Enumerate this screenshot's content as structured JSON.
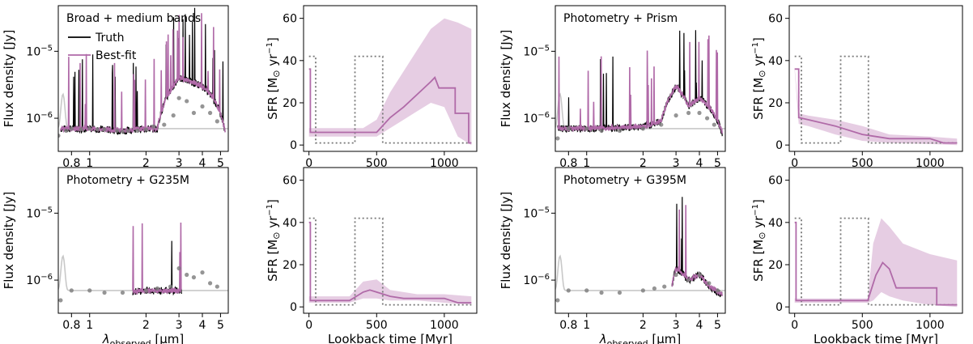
{
  "figure": {
    "description_label": "SED fits and star-formation histories for four data configurations"
  },
  "colors": {
    "truth": "#000000",
    "bestfit": "#b06aa8",
    "bestfit_band": "#e6cde3",
    "photometry_points": "#7a7a7a",
    "unfit_spectrum": "#c8c8c8",
    "truth_sfh": "#777777"
  },
  "legend": {
    "truth": "Truth",
    "bestfit": "Best-fit"
  },
  "sed_axes": {
    "ylabel": "Flux density [Jy]",
    "xlabel": "λ_observed [μm]",
    "xlabel_main": "λ",
    "xlabel_sub": "observed",
    "xlabel_unit": " [μm]",
    "xlim": [
      0.68,
      5.5
    ],
    "ylim": [
      3.2e-07,
      4.8e-05
    ],
    "xticks": [
      0.8,
      1,
      2,
      3,
      4,
      5
    ],
    "xticklabels": [
      "0.8",
      "1",
      "2",
      "3",
      "4",
      "5"
    ],
    "yticks": [
      1e-06,
      1e-05
    ],
    "yticklabels": [
      [
        "10",
        "−6"
      ],
      [
        "10",
        "−5"
      ]
    ]
  },
  "sfr_axes": {
    "ylabel": "SFR [M☉ yr⁻¹]",
    "ylabel_main": "SFR [M",
    "ylabel_sun": "⊙",
    "ylabel_yr": " yr",
    "ylabel_exp": "−1",
    "ylabel_close": "]",
    "xlabel": "Lookback time [Myr]",
    "xlim": [
      -40,
      1240
    ],
    "ylim": [
      -3,
      66
    ],
    "xticks": [
      0,
      500,
      1000
    ],
    "yticks": [
      0,
      20,
      40,
      60
    ],
    "truth_sfh": [
      [
        0,
        42
      ],
      [
        50,
        42
      ],
      [
        50,
        1
      ],
      [
        340,
        1
      ],
      [
        340,
        42
      ],
      [
        545,
        42
      ],
      [
        545,
        1
      ],
      [
        1200,
        1
      ]
    ]
  },
  "chart_data": [
    {
      "type": "line",
      "panel": "sed",
      "title": "Broad + medium bands",
      "legend": true,
      "series": [
        {
          "name": "Truth",
          "x": [
            0.7,
            0.8,
            1.0,
            1.5,
            2.0,
            2.3,
            3.0,
            4.0,
            5.3
          ],
          "y": [
            7e-07,
            7e-07,
            7e-07,
            6.5e-07,
            7e-07,
            7e-07,
            4e-06,
            3e-06,
            6e-07
          ]
        },
        {
          "name": "Best-fit",
          "x": [
            0.7,
            0.8,
            1.0,
            1.5,
            2.0,
            2.3,
            3.0,
            4.0,
            5.3
          ],
          "y": [
            7e-07,
            7e-07,
            7e-07,
            6.5e-07,
            7e-07,
            7e-07,
            4e-06,
            3e-06,
            6e-07
          ]
        },
        {
          "name": "Photometry",
          "x": [
            0.68,
            0.75,
            0.8,
            0.9,
            1.0,
            1.1,
            1.2,
            1.4,
            1.5,
            1.6,
            1.8,
            2.0,
            2.2,
            2.5,
            2.8,
            3.0,
            3.3,
            3.6,
            4.0,
            4.4,
            4.8
          ],
          "y": [
            5.5e-07,
            6.5e-07,
            7e-07,
            6.8e-07,
            7e-07,
            6.8e-07,
            6.8e-07,
            6.5e-07,
            6.3e-07,
            6.5e-07,
            6.5e-07,
            6.8e-07,
            7.5e-07,
            8e-07,
            1.1e-06,
            2e-06,
            1.8e-06,
            1.2e-06,
            1.5e-06,
            1.2e-06,
            9e-07
          ]
        }
      ]
    },
    {
      "type": "line",
      "panel": "sfh",
      "title": "",
      "series": [
        {
          "name": "Best-fit",
          "x": [
            0,
            10,
            10,
            500,
            600,
            700,
            800,
            900,
            930,
            960,
            1000,
            1050,
            1080,
            1080,
            1180,
            1180,
            1200
          ],
          "y": [
            36,
            36,
            6,
            6,
            13,
            18,
            24,
            30,
            32,
            27,
            27,
            27,
            27,
            15,
            15,
            1,
            1
          ]
        },
        {
          "name": "Best-fit band",
          "x": [
            0,
            400,
            500,
            600,
            700,
            800,
            900,
            1000,
            1100,
            1200
          ],
          "lower": [
            4,
            4,
            4,
            8,
            12,
            16,
            20,
            18,
            4,
            0
          ],
          "upper": [
            8,
            8,
            12,
            25,
            35,
            45,
            55,
            60,
            58,
            55
          ]
        }
      ]
    },
    {
      "type": "line",
      "panel": "sed",
      "title": "Photometry + Prism",
      "legend": false,
      "series": [
        {
          "name": "Truth",
          "x": [
            0.7,
            1.0,
            2.0,
            2.5,
            3.0,
            3.5,
            4.0,
            5.3
          ],
          "y": [
            7e-07,
            7e-07,
            7.5e-07,
            9e-07,
            3e-06,
            1.5e-06,
            2e-06,
            6e-07
          ]
        },
        {
          "name": "Best-fit",
          "x": [
            0.7,
            1.0,
            2.0,
            2.5,
            3.0,
            3.5,
            4.0,
            5.3
          ],
          "y": [
            7e-07,
            7e-07,
            7.5e-07,
            9e-07,
            3e-06,
            1.5e-06,
            2e-06,
            6e-07
          ]
        },
        {
          "name": "Photometry",
          "x": [
            0.7,
            0.8,
            1.0,
            1.2,
            1.5,
            2.0,
            2.5,
            3.0,
            3.5,
            4.0,
            4.4,
            4.8
          ],
          "y": [
            5e-07,
            7e-07,
            7e-07,
            6.5e-07,
            6.5e-07,
            7e-07,
            8e-07,
            1.1e-06,
            1.2e-06,
            1.2e-06,
            1e-06,
            8e-07
          ]
        }
      ]
    },
    {
      "type": "line",
      "panel": "sfh",
      "title": "",
      "series": [
        {
          "name": "Best-fit",
          "x": [
            0,
            30,
            30,
            100,
            300,
            500,
            600,
            700,
            1000,
            1100,
            1200
          ],
          "y": [
            36,
            36,
            13,
            12,
            9,
            5,
            4,
            3,
            3,
            1,
            1
          ]
        },
        {
          "name": "Best-fit band",
          "x": [
            0,
            30,
            100,
            300,
            500,
            700,
            1000,
            1200
          ],
          "lower": [
            35,
            10,
            9,
            5,
            2,
            1,
            0.5,
            0
          ],
          "upper": [
            37,
            15,
            14,
            12,
            9,
            5,
            4,
            3
          ]
        }
      ]
    },
    {
      "type": "line",
      "panel": "sed",
      "title": "Photometry + G235M",
      "legend": false,
      "series": [
        {
          "name": "Truth",
          "x": [
            1.7,
            2.0,
            2.5,
            3.1
          ],
          "y": [
            6.8e-07,
            7e-07,
            7e-07,
            7e-07
          ]
        },
        {
          "name": "Best-fit",
          "x": [
            1.7,
            2.0,
            2.5,
            3.1
          ],
          "y": [
            6.8e-07,
            7e-07,
            7e-07,
            7e-07
          ]
        },
        {
          "name": "Photometry",
          "x": [
            0.7,
            0.8,
            1.0,
            1.2,
            1.5,
            2.0,
            2.3,
            2.7,
            3.0,
            3.3,
            3.6,
            4.0,
            4.4,
            4.8
          ],
          "y": [
            5e-07,
            7e-07,
            7e-07,
            6.5e-07,
            6.5e-07,
            7e-07,
            7.5e-07,
            8e-07,
            1.5e-06,
            1.2e-06,
            1.1e-06,
            1.3e-06,
            9e-07,
            8e-07
          ]
        }
      ]
    },
    {
      "type": "line",
      "panel": "sfh",
      "title": "",
      "series": [
        {
          "name": "Best-fit",
          "x": [
            0,
            10,
            10,
            300,
            350,
            400,
            450,
            500,
            600,
            700,
            800,
            1000,
            1050,
            1100,
            1200
          ],
          "y": [
            40,
            40,
            3,
            3,
            5,
            7,
            8,
            7,
            5,
            4,
            4,
            4,
            3,
            2,
            2
          ]
        },
        {
          "name": "Best-fit band",
          "x": [
            0,
            300,
            400,
            500,
            600,
            800,
            1000,
            1200
          ],
          "lower": [
            2,
            2,
            4,
            4,
            3,
            3,
            2,
            1
          ],
          "upper": [
            5,
            5,
            12,
            13,
            8,
            6,
            6,
            5
          ]
        }
      ]
    },
    {
      "type": "line",
      "panel": "sed",
      "title": "Photometry + G395M",
      "legend": false,
      "series": [
        {
          "name": "Truth",
          "x": [
            2.85,
            3.0,
            3.5,
            4.0,
            4.5,
            5.3
          ],
          "y": [
            8e-07,
            1.5e-06,
            1e-06,
            1.2e-06,
            8e-07,
            6e-07
          ]
        },
        {
          "name": "Best-fit",
          "x": [
            2.85,
            3.0,
            3.5,
            4.0,
            4.5,
            5.3
          ],
          "y": [
            8e-07,
            1.5e-06,
            1e-06,
            1.2e-06,
            8e-07,
            6e-07
          ]
        },
        {
          "name": "Photometry",
          "x": [
            0.7,
            0.8,
            1.0,
            1.2,
            1.5,
            2.0,
            2.3,
            2.6,
            3.0,
            3.5,
            4.0,
            4.5,
            5.0
          ],
          "y": [
            5e-07,
            7e-07,
            7e-07,
            6.5e-07,
            6.5e-07,
            7e-07,
            7.5e-07,
            8e-07,
            1.2e-06,
            1e-06,
            1.2e-06,
            9e-07,
            7e-07
          ]
        }
      ]
    },
    {
      "type": "line",
      "panel": "sfh",
      "title": "",
      "series": [
        {
          "name": "Best-fit",
          "x": [
            0,
            10,
            10,
            540,
            600,
            650,
            700,
            750,
            800,
            1000,
            1050,
            1050,
            1200
          ],
          "y": [
            40,
            40,
            3,
            3,
            15,
            21,
            18,
            9,
            9,
            9,
            9,
            1,
            1
          ]
        },
        {
          "name": "Best-fit band",
          "x": [
            0,
            540,
            580,
            640,
            700,
            800,
            1000,
            1200
          ],
          "lower": [
            2,
            2,
            3,
            7,
            5,
            3,
            1,
            0
          ],
          "upper": [
            4,
            4,
            30,
            42,
            38,
            30,
            25,
            22
          ]
        }
      ]
    }
  ]
}
